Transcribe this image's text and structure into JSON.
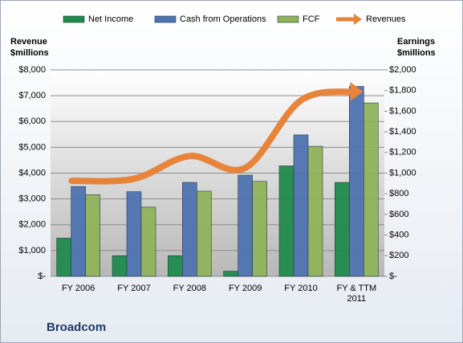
{
  "chart_data": {
    "type": "bar",
    "title": "Broadcom",
    "y_label": "Revenue $millions",
    "y2_label": "Earnings $millions",
    "categories": [
      "FY 2006",
      "FY 2007",
      "FY 2008",
      "FY 2009",
      "FY 2010",
      "FY & TTM 2011"
    ],
    "series": [
      {
        "name": "Net Income",
        "color": "#1f8a4c",
        "axis": "y2",
        "type": "bar",
        "values": [
          370,
          200,
          200,
          50,
          1070,
          910
        ]
      },
      {
        "name": "Cash from Operations",
        "color": "#4f73b0",
        "axis": "y2",
        "type": "bar",
        "values": [
          870,
          820,
          910,
          980,
          1370,
          1840
        ]
      },
      {
        "name": "FCF",
        "color": "#8fb25a",
        "axis": "y2",
        "type": "bar",
        "values": [
          790,
          670,
          825,
          920,
          1260,
          1680
        ]
      },
      {
        "name": "Revenues",
        "color": "#e8833a",
        "type": "line",
        "values": [
          3700,
          3780,
          4660,
          4200,
          6820,
          7160
        ]
      }
    ],
    "ylim": [
      0,
      8000
    ],
    "yticks": [
      {
        "value": 0,
        "label": "$-"
      },
      {
        "value": 1000,
        "label": "$1,000"
      },
      {
        "value": 2000,
        "label": "$2,000"
      },
      {
        "value": 3000,
        "label": "$3,000"
      },
      {
        "value": 4000,
        "label": "$4,000"
      },
      {
        "value": 5000,
        "label": "$5,000"
      },
      {
        "value": 6000,
        "label": "$6,000"
      },
      {
        "value": 7000,
        "label": "$7,000"
      },
      {
        "value": 8000,
        "label": "$8,000"
      }
    ],
    "y2lim": [
      0,
      2000
    ],
    "y2ticks": [
      {
        "value": 0,
        "label": "$-"
      },
      {
        "value": 200,
        "label": "$200"
      },
      {
        "value": 400,
        "label": "$400"
      },
      {
        "value": 600,
        "label": "$600"
      },
      {
        "value": 800,
        "label": "$800"
      },
      {
        "value": 1000,
        "label": "$1,000"
      },
      {
        "value": 1200,
        "label": "$1,200"
      },
      {
        "value": 1400,
        "label": "$1,400"
      },
      {
        "value": 1600,
        "label": "$1,600"
      },
      {
        "value": 1800,
        "label": "$1,800"
      },
      {
        "value": 2000,
        "label": "$2,000"
      }
    ],
    "grid": true,
    "legend": "top"
  }
}
